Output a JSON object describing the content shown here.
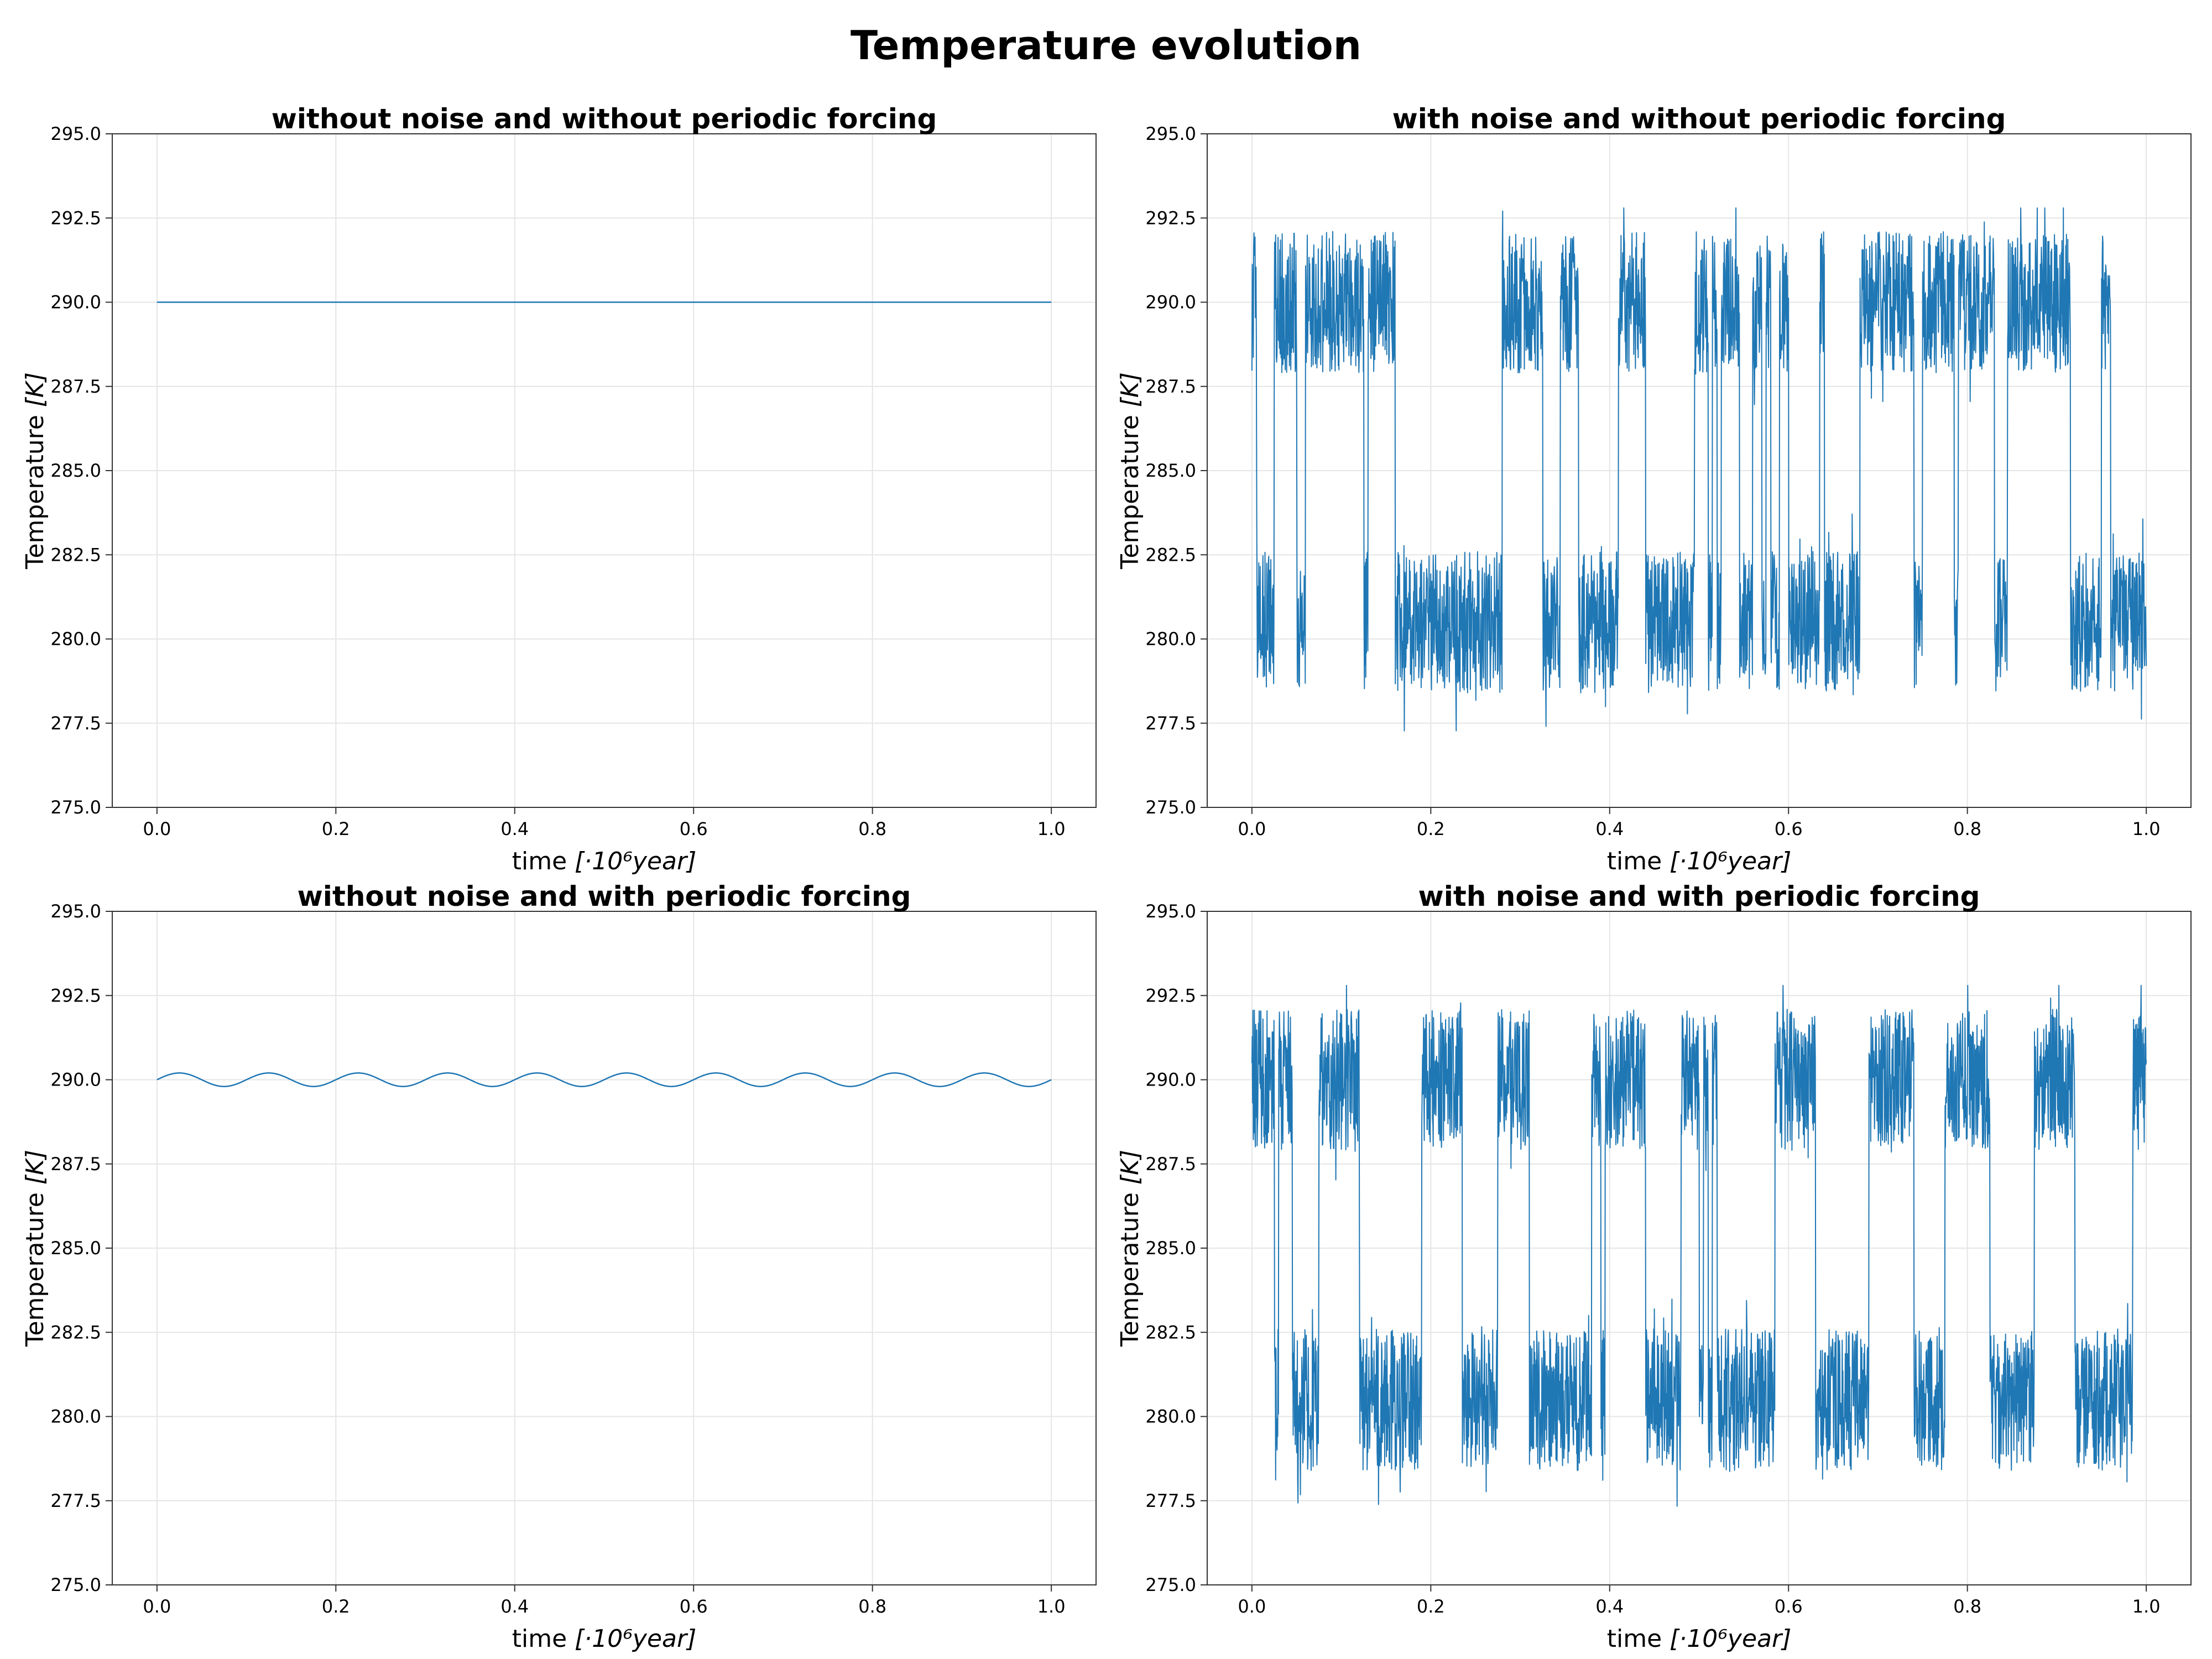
{
  "figure": {
    "title": "Temperature evolution",
    "series_color": "#1f77b4"
  },
  "chart_data": [
    {
      "type": "line",
      "title": "without noise and without periodic forcing",
      "xlabel_text": "time ",
      "xlabel_math": "[·10⁶year]",
      "ylabel_text": "Temperature ",
      "ylabel_math": "[K]",
      "xlim": [
        -0.05,
        1.05
      ],
      "ylim": [
        275.0,
        295.0
      ],
      "xticks": [
        0.0,
        0.2,
        0.4,
        0.6,
        0.8,
        1.0
      ],
      "xtick_labels": [
        "0.0",
        "0.2",
        "0.4",
        "0.6",
        "0.8",
        "1.0"
      ],
      "yticks": [
        275.0,
        277.5,
        280.0,
        282.5,
        285.0,
        287.5,
        290.0,
        292.5,
        295.0
      ],
      "ytick_labels": [
        "275.0",
        "277.5",
        "280.0",
        "282.5",
        "285.0",
        "287.5",
        "290.0",
        "292.5",
        "295.0"
      ],
      "grid": true,
      "model": "constant",
      "x": [
        0.0,
        1.0
      ],
      "y": [
        290.0,
        290.0
      ]
    },
    {
      "type": "line",
      "title": "with noise and without periodic forcing",
      "xlabel_text": "time ",
      "xlabel_math": "[·10⁶year]",
      "ylabel_text": "Temperature ",
      "ylabel_math": "[K]",
      "xlim": [
        -0.05,
        1.05
      ],
      "ylim": [
        275.0,
        295.0
      ],
      "xticks": [
        0.0,
        0.2,
        0.4,
        0.6,
        0.8,
        1.0
      ],
      "xtick_labels": [
        "0.0",
        "0.2",
        "0.4",
        "0.6",
        "0.8",
        "1.0"
      ],
      "yticks": [
        275.0,
        277.5,
        280.0,
        282.5,
        285.0,
        287.5,
        290.0,
        292.5,
        295.0
      ],
      "ytick_labels": [
        "275.0",
        "277.5",
        "280.0",
        "282.5",
        "285.0",
        "287.5",
        "290.0",
        "292.5",
        "295.0"
      ],
      "grid": true,
      "model": "noisy_switching",
      "x_range": [
        0.0,
        1.0
      ],
      "warm_state": 290.0,
      "cold_state": 280.5,
      "observed_range": [
        277.2,
        292.8
      ],
      "warm_intervals": [
        [
          0.0,
          0.005
        ],
        [
          0.025,
          0.05
        ],
        [
          0.06,
          0.125
        ],
        [
          0.13,
          0.16
        ],
        [
          0.28,
          0.325
        ],
        [
          0.345,
          0.365
        ],
        [
          0.41,
          0.44
        ],
        [
          0.495,
          0.51
        ],
        [
          0.515,
          0.52
        ],
        [
          0.525,
          0.545
        ],
        [
          0.56,
          0.57
        ],
        [
          0.575,
          0.58
        ],
        [
          0.59,
          0.6
        ],
        [
          0.635,
          0.64
        ],
        [
          0.68,
          0.74
        ],
        [
          0.75,
          0.785
        ],
        [
          0.79,
          0.83
        ],
        [
          0.845,
          0.915
        ],
        [
          0.95,
          0.96
        ]
      ]
    },
    {
      "type": "line",
      "title": "without noise and with periodic forcing",
      "xlabel_text": "time ",
      "xlabel_math": "[·10⁶year]",
      "ylabel_text": "Temperature ",
      "ylabel_math": "[K]",
      "xlim": [
        -0.05,
        1.05
      ],
      "ylim": [
        275.0,
        295.0
      ],
      "xticks": [
        0.0,
        0.2,
        0.4,
        0.6,
        0.8,
        1.0
      ],
      "xtick_labels": [
        "0.0",
        "0.2",
        "0.4",
        "0.6",
        "0.8",
        "1.0"
      ],
      "yticks": [
        275.0,
        277.5,
        280.0,
        282.5,
        285.0,
        287.5,
        290.0,
        292.5,
        295.0
      ],
      "ytick_labels": [
        "275.0",
        "277.5",
        "280.0",
        "282.5",
        "285.0",
        "287.5",
        "290.0",
        "292.5",
        "295.0"
      ],
      "grid": true,
      "model": "sinusoid",
      "x_range": [
        0.0,
        1.0
      ],
      "baseline": 290.0,
      "amplitude": 0.2,
      "period": 0.1,
      "start_value": 290.0
    },
    {
      "type": "line",
      "title": "with noise and with periodic forcing",
      "xlabel_text": "time ",
      "xlabel_math": "[·10⁶year]",
      "ylabel_text": "Temperature ",
      "ylabel_math": "[K]",
      "xlim": [
        -0.05,
        1.05
      ],
      "ylim": [
        275.0,
        295.0
      ],
      "xticks": [
        0.0,
        0.2,
        0.4,
        0.6,
        0.8,
        1.0
      ],
      "xtick_labels": [
        "0.0",
        "0.2",
        "0.4",
        "0.6",
        "0.8",
        "1.0"
      ],
      "yticks": [
        275.0,
        277.5,
        280.0,
        282.5,
        285.0,
        287.5,
        290.0,
        292.5,
        295.0
      ],
      "ytick_labels": [
        "275.0",
        "277.5",
        "280.0",
        "282.5",
        "285.0",
        "287.5",
        "290.0",
        "292.5",
        "295.0"
      ],
      "grid": true,
      "model": "noisy_switching",
      "x_range": [
        0.0,
        1.0
      ],
      "warm_state": 290.0,
      "cold_state": 280.5,
      "observed_range": [
        277.1,
        292.8
      ],
      "warm_intervals": [
        [
          0.0,
          0.025
        ],
        [
          0.03,
          0.045
        ],
        [
          0.075,
          0.12
        ],
        [
          0.19,
          0.235
        ],
        [
          0.275,
          0.31
        ],
        [
          0.38,
          0.39
        ],
        [
          0.395,
          0.44
        ],
        [
          0.48,
          0.5
        ],
        [
          0.505,
          0.51
        ],
        [
          0.515,
          0.52
        ],
        [
          0.585,
          0.63
        ],
        [
          0.69,
          0.74
        ],
        [
          0.775,
          0.825
        ],
        [
          0.875,
          0.92
        ],
        [
          0.985,
          1.0
        ]
      ]
    }
  ]
}
